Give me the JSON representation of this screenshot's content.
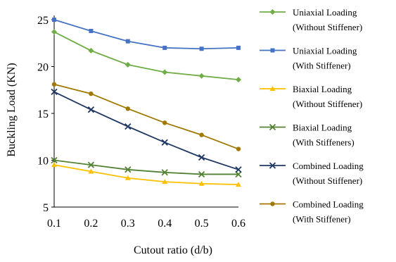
{
  "chart_data": {
    "type": "line",
    "xlabel": "Cutout ratio (d/b)",
    "ylabel": "Buckling Load (KN)",
    "x": [
      0.1,
      0.2,
      0.3,
      0.4,
      0.5,
      0.6
    ],
    "x_tick_labels": [
      "0.1",
      "0.2",
      "0.3",
      "0.4",
      "0.5",
      "0.6"
    ],
    "xlim": [
      0.1,
      0.6
    ],
    "ylim": [
      5,
      25
    ],
    "y_ticks": [
      5,
      10,
      15,
      20,
      25
    ],
    "y_tick_labels": [
      "5",
      "10",
      "15",
      "20",
      "25"
    ],
    "grid": false,
    "legend_position": "right",
    "series": [
      {
        "name_line1": "Uniaxial Loading",
        "name_line2": "(Without Stiffener)",
        "color": "#70AD47",
        "marker": "diamond",
        "values": [
          23.7,
          21.7,
          20.2,
          19.4,
          19.0,
          18.6
        ]
      },
      {
        "name_line1": "Uniaxial Loading",
        "name_line2": "(With Stiffener)",
        "color": "#4472C4",
        "marker": "square",
        "values": [
          25.0,
          23.8,
          22.7,
          22.0,
          21.9,
          22.0
        ]
      },
      {
        "name_line1": "Biaxial Loading",
        "name_line2": "(Without Stiffener)",
        "color": "#FFC000",
        "marker": "triangle",
        "values": [
          9.5,
          8.8,
          8.1,
          7.7,
          7.5,
          7.4
        ]
      },
      {
        "name_line1": "Biaxial Loading",
        "name_line2": "(With Stiffeners)",
        "color": "#548235",
        "marker": "x",
        "values": [
          10.0,
          9.5,
          9.0,
          8.7,
          8.5,
          8.5
        ]
      },
      {
        "name_line1": "Combined Loading",
        "name_line2": "(Without Stiffener)",
        "color": "#203864",
        "marker": "x",
        "values": [
          17.3,
          15.4,
          13.6,
          11.9,
          10.3,
          9.0
        ]
      },
      {
        "name_line1": "Combined Loading",
        "name_line2": "(With Stiffener)",
        "color": "#A07800",
        "marker": "circle",
        "values": [
          18.1,
          17.1,
          15.5,
          14.0,
          12.7,
          11.2
        ]
      }
    ]
  }
}
